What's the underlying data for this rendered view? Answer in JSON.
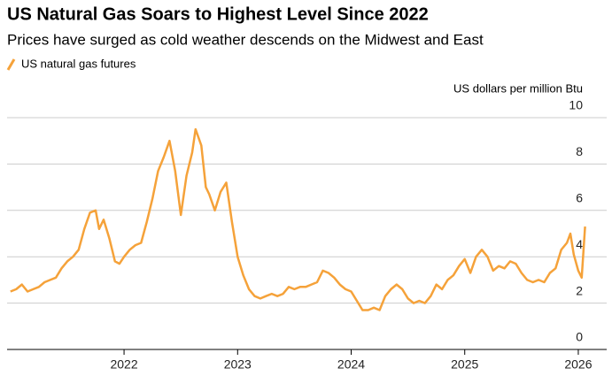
{
  "chart_data": {
    "type": "line",
    "title": "US Natural Gas Soars to Highest Level Since 2022",
    "subtitle": "Prices have surged as cold weather descends on the Midwest and East",
    "y_label": "US dollars per million Btu",
    "xlim": [
      2020.97,
      2026.25
    ],
    "xticks": [
      2022,
      2023,
      2024,
      2025,
      2026
    ],
    "ylim": [
      0,
      10
    ],
    "yticks": [
      0,
      2,
      4,
      6,
      8,
      10
    ],
    "grid": true,
    "series": [
      {
        "name": "US natural gas futures",
        "color": "#f5a23a",
        "x": [
          2021.0,
          2021.05,
          2021.1,
          2021.15,
          2021.2,
          2021.25,
          2021.3,
          2021.35,
          2021.4,
          2021.45,
          2021.5,
          2021.55,
          2021.6,
          2021.65,
          2021.7,
          2021.75,
          2021.78,
          2021.82,
          2021.87,
          2021.92,
          2021.96,
          2022.0,
          2022.05,
          2022.1,
          2022.15,
          2022.2,
          2022.25,
          2022.3,
          2022.35,
          2022.4,
          2022.45,
          2022.5,
          2022.55,
          2022.6,
          2022.63,
          2022.68,
          2022.72,
          2022.75,
          2022.8,
          2022.85,
          2022.9,
          2022.95,
          2023.0,
          2023.05,
          2023.1,
          2023.15,
          2023.2,
          2023.25,
          2023.3,
          2023.35,
          2023.4,
          2023.45,
          2023.5,
          2023.55,
          2023.6,
          2023.65,
          2023.7,
          2023.75,
          2023.8,
          2023.85,
          2023.9,
          2023.95,
          2024.0,
          2024.05,
          2024.1,
          2024.15,
          2024.2,
          2024.25,
          2024.3,
          2024.35,
          2024.4,
          2024.45,
          2024.5,
          2024.55,
          2024.6,
          2024.65,
          2024.7,
          2024.75,
          2024.8,
          2024.85,
          2024.9,
          2024.95,
          2025.0,
          2025.05,
          2025.1,
          2025.15,
          2025.2,
          2025.25,
          2025.3,
          2025.35,
          2025.4,
          2025.45,
          2025.5,
          2025.55,
          2025.6,
          2025.65,
          2025.7,
          2025.75,
          2025.8,
          2025.85,
          2025.9,
          2025.93,
          2025.96,
          2026.0,
          2026.03,
          2026.06
        ],
        "values": [
          2.5,
          2.6,
          2.8,
          2.5,
          2.6,
          2.7,
          2.9,
          3.0,
          3.1,
          3.5,
          3.8,
          4.0,
          4.3,
          5.2,
          5.9,
          6.0,
          5.2,
          5.6,
          4.8,
          3.8,
          3.7,
          4.0,
          4.3,
          4.5,
          4.6,
          5.5,
          6.5,
          7.7,
          8.3,
          9.0,
          7.7,
          5.8,
          7.5,
          8.5,
          9.5,
          8.8,
          7.0,
          6.7,
          6.0,
          6.8,
          7.2,
          5.5,
          4.0,
          3.2,
          2.6,
          2.3,
          2.2,
          2.3,
          2.4,
          2.3,
          2.4,
          2.7,
          2.6,
          2.7,
          2.7,
          2.8,
          2.9,
          3.4,
          3.3,
          3.1,
          2.8,
          2.6,
          2.5,
          2.1,
          1.7,
          1.7,
          1.8,
          1.7,
          2.3,
          2.6,
          2.8,
          2.6,
          2.2,
          2.0,
          2.1,
          2.0,
          2.3,
          2.8,
          2.6,
          3.0,
          3.2,
          3.6,
          3.9,
          3.3,
          4.0,
          4.3,
          4.0,
          3.4,
          3.6,
          3.5,
          3.8,
          3.7,
          3.3,
          3.0,
          2.9,
          3.0,
          2.9,
          3.3,
          3.5,
          4.3,
          4.6,
          5.0,
          4.1,
          3.4,
          3.1,
          5.3
        ]
      }
    ]
  }
}
